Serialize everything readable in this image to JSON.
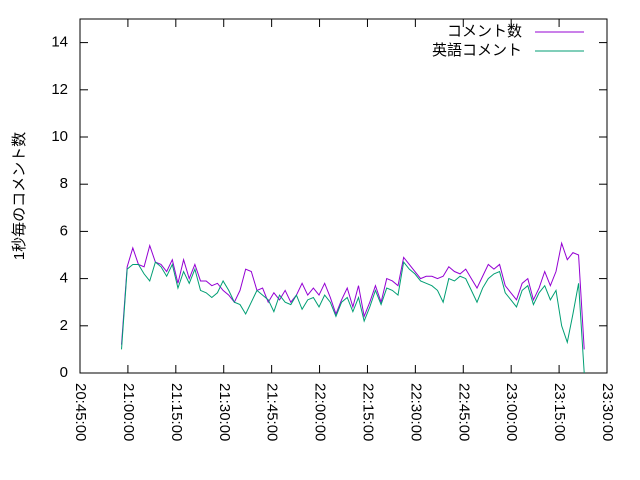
{
  "chart_data": {
    "type": "line",
    "ylabel": "1秒毎のコメント数",
    "x": [
      75480,
      75586,
      75692,
      75798,
      75904,
      76010,
      76116,
      76222,
      76328,
      76434,
      76540,
      76646,
      76752,
      76858,
      76964,
      77070,
      77176,
      77282,
      77388,
      77494,
      77600,
      77706,
      77812,
      77918,
      78024,
      78130,
      78236,
      78342,
      78448,
      78554,
      78660,
      78766,
      78872,
      78978,
      79084,
      79190,
      79296,
      79402,
      79508,
      79614,
      79720,
      79826,
      79932,
      80038,
      80144,
      80250,
      80356,
      80462,
      80568,
      80674,
      80780,
      80886,
      80992,
      81098,
      81204,
      81310,
      81416,
      81522,
      81628,
      81734,
      81840,
      81946,
      82052,
      82158,
      82264,
      82370,
      82476,
      82582,
      82688,
      82794,
      82900,
      83006,
      83112,
      83218,
      83324,
      83430,
      83536,
      83642,
      83748,
      83854,
      83960,
      84066,
      84172
    ],
    "series": [
      {
        "name": "コメント数",
        "color": "#9400d3",
        "values": [
          1.2,
          4.5,
          5.3,
          4.6,
          4.5,
          5.4,
          4.7,
          4.6,
          4.3,
          4.8,
          3.8,
          4.8,
          4.0,
          4.6,
          3.9,
          3.9,
          3.7,
          3.8,
          3.5,
          3.3,
          3.0,
          3.5,
          4.4,
          4.3,
          3.5,
          3.6,
          3.0,
          3.4,
          3.1,
          3.5,
          3.0,
          3.3,
          3.8,
          3.3,
          3.6,
          3.3,
          3.8,
          3.2,
          2.5,
          3.1,
          3.6,
          2.8,
          3.7,
          2.4,
          3.0,
          3.7,
          3.0,
          4.0,
          3.9,
          3.7,
          4.9,
          4.6,
          4.3,
          4.0,
          4.1,
          4.1,
          4.0,
          4.1,
          4.5,
          4.3,
          4.2,
          4.4,
          4.0,
          3.6,
          4.1,
          4.6,
          4.4,
          4.6,
          3.7,
          3.4,
          3.1,
          3.8,
          4.0,
          3.1,
          3.6,
          4.3,
          3.7,
          4.3,
          5.5,
          4.8,
          5.1,
          5.0,
          1.0
        ]
      },
      {
        "name": "英語コメント",
        "color": "#009e73",
        "values": [
          1.0,
          4.4,
          4.6,
          4.6,
          4.2,
          3.9,
          4.7,
          4.5,
          4.1,
          4.6,
          3.6,
          4.3,
          3.8,
          4.4,
          3.5,
          3.4,
          3.2,
          3.4,
          3.9,
          3.5,
          3.0,
          2.9,
          2.5,
          3.0,
          3.5,
          3.3,
          3.1,
          2.6,
          3.3,
          3.0,
          2.9,
          3.3,
          2.7,
          3.1,
          3.2,
          2.8,
          3.3,
          3.0,
          2.4,
          3.0,
          3.2,
          2.6,
          3.2,
          2.2,
          2.8,
          3.5,
          2.9,
          3.6,
          3.5,
          3.3,
          4.7,
          4.4,
          4.2,
          3.9,
          3.8,
          3.7,
          3.5,
          3.0,
          4.0,
          3.9,
          4.1,
          4.0,
          3.5,
          3.0,
          3.6,
          4.0,
          4.2,
          4.3,
          3.4,
          3.1,
          2.8,
          3.5,
          3.7,
          2.9,
          3.4,
          3.7,
          3.1,
          3.5,
          2.0,
          1.3,
          2.5,
          3.8,
          0.0
        ]
      }
    ],
    "xlim": [
      74700,
      84600
    ],
    "xticks": [
      {
        "value": 74700,
        "label": "20:45:00"
      },
      {
        "value": 75600,
        "label": "21:00:00"
      },
      {
        "value": 76500,
        "label": "21:15:00"
      },
      {
        "value": 77400,
        "label": "21:30:00"
      },
      {
        "value": 78300,
        "label": "21:45:00"
      },
      {
        "value": 79200,
        "label": "22:00:00"
      },
      {
        "value": 80100,
        "label": "22:15:00"
      },
      {
        "value": 81000,
        "label": "22:30:00"
      },
      {
        "value": 81900,
        "label": "22:45:00"
      },
      {
        "value": 82800,
        "label": "23:00:00"
      },
      {
        "value": 83700,
        "label": "23:15:00"
      },
      {
        "value": 84600,
        "label": "23:30:00"
      }
    ],
    "ylim": [
      0,
      15
    ],
    "yticks": [
      0,
      2,
      4,
      6,
      8,
      10,
      12,
      14
    ],
    "legend": "top-right"
  }
}
